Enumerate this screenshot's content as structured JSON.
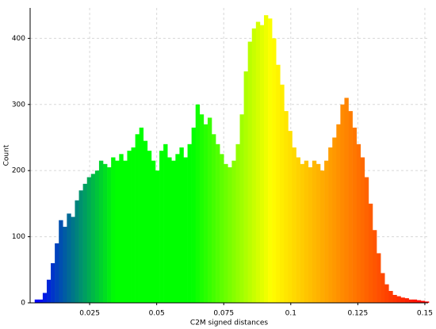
{
  "chart_data": {
    "type": "histogram",
    "x_label": "C2M signed distances",
    "y_label": "Count",
    "bins": [
      0.0045,
      0.006,
      0.0075,
      0.009,
      0.0105,
      0.012,
      0.0135,
      0.015,
      0.0165,
      0.018,
      0.0195,
      0.021,
      0.0225,
      0.024,
      0.0255,
      0.027,
      0.0285,
      0.03,
      0.0315,
      0.033,
      0.0345,
      0.036,
      0.0375,
      0.039,
      0.0405,
      0.042,
      0.0435,
      0.045,
      0.0465,
      0.048,
      0.0495,
      0.051,
      0.0525,
      0.054,
      0.0555,
      0.057,
      0.0585,
      0.06,
      0.0615,
      0.063,
      0.0645,
      0.066,
      0.0675,
      0.069,
      0.0705,
      0.072,
      0.0735,
      0.075,
      0.0765,
      0.078,
      0.0795,
      0.081,
      0.0825,
      0.084,
      0.0855,
      0.087,
      0.0885,
      0.09,
      0.0915,
      0.093,
      0.0945,
      0.096,
      0.0975,
      0.099,
      0.1005,
      0.102,
      0.1035,
      0.105,
      0.1065,
      0.108,
      0.1095,
      0.111,
      0.1125,
      0.114,
      0.1155,
      0.117,
      0.1185,
      0.12,
      0.1215,
      0.123,
      0.1245,
      0.126,
      0.1275,
      0.129,
      0.1305,
      0.132,
      0.1335,
      0.135,
      0.1365,
      0.138,
      0.1395,
      0.141,
      0.1425,
      0.144,
      0.1455,
      0.147,
      0.1485,
      0.15,
      0.1515
    ],
    "values": [
      5,
      5,
      15,
      35,
      60,
      90,
      125,
      115,
      135,
      130,
      155,
      170,
      180,
      190,
      195,
      200,
      215,
      210,
      205,
      220,
      215,
      225,
      215,
      230,
      235,
      255,
      265,
      245,
      230,
      215,
      200,
      230,
      240,
      220,
      215,
      225,
      235,
      220,
      240,
      265,
      300,
      285,
      270,
      280,
      255,
      240,
      225,
      210,
      205,
      215,
      240,
      285,
      350,
      395,
      415,
      425,
      420,
      435,
      430,
      400,
      360,
      330,
      290,
      260,
      235,
      220,
      210,
      215,
      205,
      215,
      210,
      200,
      215,
      235,
      250,
      270,
      300,
      310,
      290,
      265,
      240,
      220,
      190,
      150,
      110,
      75,
      45,
      28,
      18,
      12,
      10,
      8,
      7,
      5,
      5,
      4,
      3,
      2
    ],
    "colormap": [
      "#0000ff",
      "#00ff00",
      "#00ff00",
      "#ffff00",
      "#ff8000",
      "#ff0000"
    ],
    "xlim": [
      0.0028,
      0.1512
    ],
    "ylim": [
      0,
      446
    ],
    "xticks": [
      0.025,
      0.05,
      0.075,
      0.1,
      0.125,
      0.15
    ],
    "yticks": [
      0,
      100,
      200,
      300,
      400
    ],
    "grid": true
  }
}
